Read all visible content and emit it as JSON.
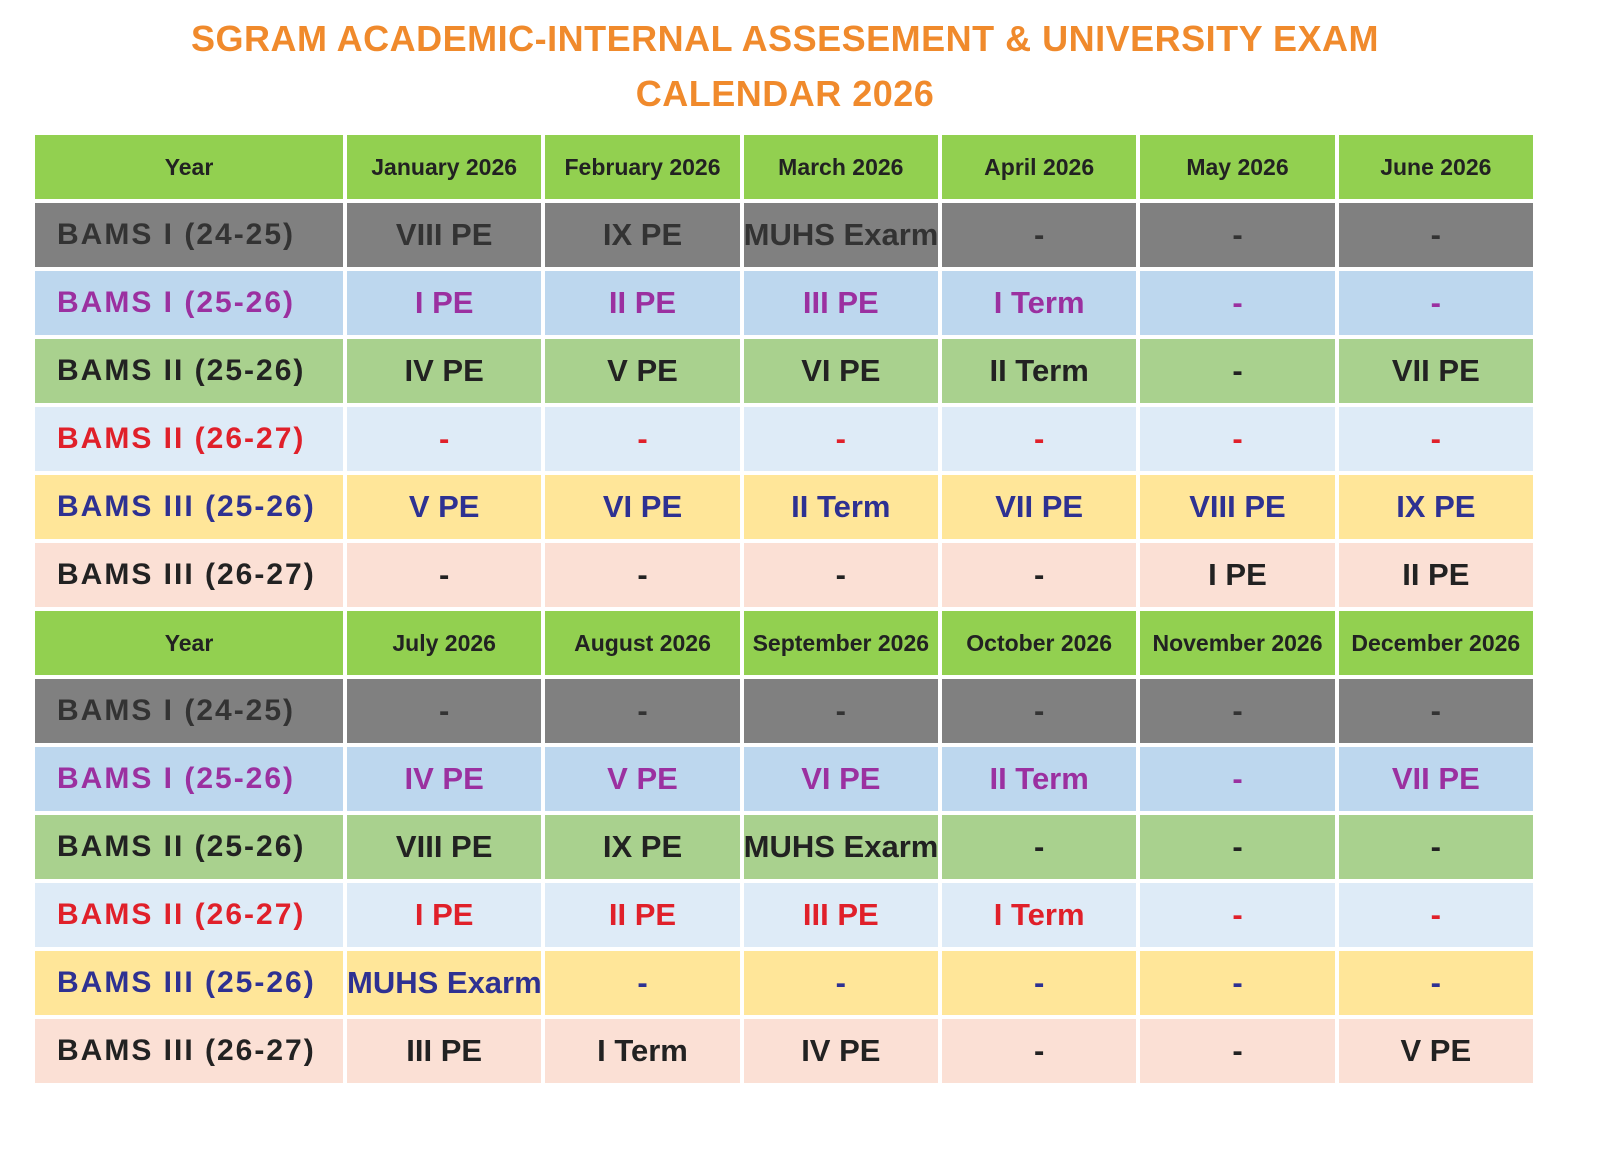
{
  "title": [
    "SGRAM ACADEMIC-INTERNAL ASSESEMENT & UNIVERSITY EXAM",
    "CALENDAR 2026"
  ],
  "tables": [
    {
      "header": [
        "Year",
        "January 2026",
        "February 2026",
        "March 2026",
        "April 2026",
        "May 2026",
        "June 2026"
      ],
      "rows": [
        [
          "BAMS I (24-25)",
          "VIII PE",
          "IX PE",
          "MUHS Exarm",
          "-",
          "-",
          "-"
        ],
        [
          "BAMS I (25-26)",
          "I PE",
          "II PE",
          "III PE",
          "I Term",
          "-",
          "-"
        ],
        [
          "BAMS II (25-26)",
          "IV PE",
          "V PE",
          "VI PE",
          "II Term",
          "-",
          "VII PE"
        ],
        [
          "BAMS II (26-27)",
          "-",
          "-",
          "-",
          "-",
          "-",
          "-"
        ],
        [
          "BAMS III (25-26)",
          "V PE",
          "VI PE",
          "II Term",
          "VII PE",
          "VIII PE",
          "IX PE"
        ],
        [
          "BAMS III (26-27)",
          "-",
          "-",
          "-",
          "-",
          "I PE",
          "II PE"
        ]
      ]
    },
    {
      "header": [
        "Year",
        "July 2026",
        "August 2026",
        "September 2026",
        "October 2026",
        "November 2026",
        "December 2026"
      ],
      "rows": [
        [
          "BAMS I (24-25)",
          "-",
          "-",
          "-",
          "-",
          "-",
          "-"
        ],
        [
          "BAMS I (25-26)",
          "IV PE",
          "V PE",
          "VI PE",
          "II Term",
          "-",
          "VII PE"
        ],
        [
          "BAMS II (25-26)",
          "VIII PE",
          "IX PE",
          "MUHS Exarm",
          "-",
          "-",
          "-"
        ],
        [
          "BAMS II (26-27)",
          "I PE",
          "II PE",
          "III PE",
          "I Term",
          "-",
          "-"
        ],
        [
          "BAMS III (25-26)",
          "MUHS Exarm",
          "-",
          "-",
          "-",
          "-",
          "-"
        ],
        [
          "BAMS III (26-27)",
          "III PE",
          "I Term",
          "IV PE",
          "-",
          "-",
          "V PE"
        ]
      ]
    }
  ]
}
